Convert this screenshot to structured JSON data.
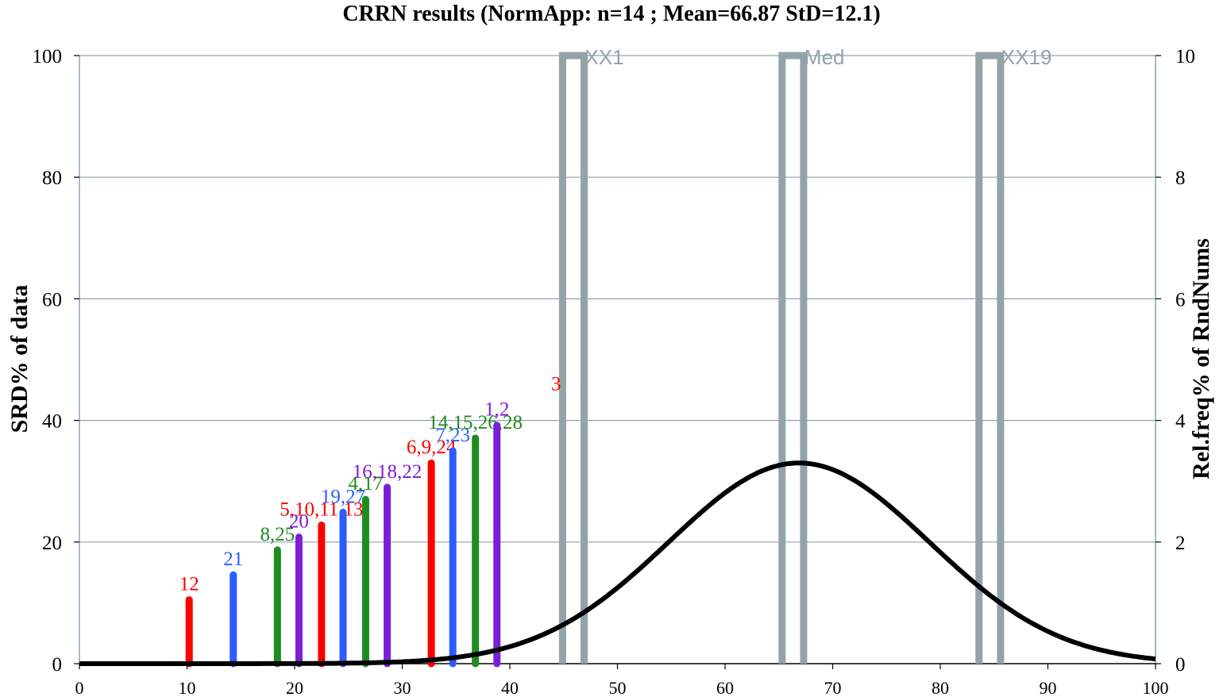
{
  "chart_data": {
    "type": "bar",
    "title": "CRRN results (NormApp: n=14 ; Mean=66.87 StD=12.1)",
    "xlabel": "",
    "ylabel": "SRD% of data",
    "y2label": "Rel.freq% of RndNums",
    "xlim": [
      0,
      100
    ],
    "ylim": [
      0,
      100
    ],
    "y2lim": [
      0,
      10
    ],
    "xticks": [
      0,
      10,
      20,
      30,
      40,
      50,
      60,
      70,
      80,
      90,
      100
    ],
    "yticks": [
      0,
      20,
      40,
      60,
      80,
      100
    ],
    "y2ticks": [
      0,
      2,
      4,
      6,
      8,
      10
    ],
    "grid": true,
    "colors": {
      "red": "#ff0000",
      "blue": "#2b5cff",
      "green": "#1e8c1e",
      "purple": "#7b1fd6",
      "gray": "#94a3a8",
      "curve": "#000000"
    },
    "bars": [
      {
        "x": 10.2,
        "y": 10.5,
        "label": "12",
        "color": "red"
      },
      {
        "x": 14.3,
        "y": 14.6,
        "label": "21",
        "color": "blue"
      },
      {
        "x": 18.4,
        "y": 18.7,
        "label": "8,25",
        "color": "green"
      },
      {
        "x": 20.4,
        "y": 20.8,
        "label": "20",
        "color": "purple"
      },
      {
        "x": 22.5,
        "y": 22.8,
        "label": "5,10,11,13",
        "color": "red"
      },
      {
        "x": 24.5,
        "y": 24.9,
        "label": "19,27",
        "color": "blue"
      },
      {
        "x": 26.6,
        "y": 27.0,
        "label": "4,17",
        "color": "green"
      },
      {
        "x": 28.6,
        "y": 29.0,
        "label": "16,18,22",
        "color": "purple"
      },
      {
        "x": 32.7,
        "y": 33.0,
        "label": "6,9,24",
        "color": "red"
      },
      {
        "x": 34.7,
        "y": 35.0,
        "label": "7,23",
        "color": "blue"
      },
      {
        "x": 36.8,
        "y": 37.1,
        "label": "14,15,26,28",
        "color": "green"
      },
      {
        "x": 38.8,
        "y": 39.2,
        "label": "1,2",
        "color": "purple"
      }
    ],
    "floating_labels": [
      {
        "x": 44.3,
        "y": 45,
        "label": "3",
        "color": "red"
      }
    ],
    "markers": [
      {
        "x1": 44.9,
        "x2": 46.9,
        "label": "XX1"
      },
      {
        "x1": 65.3,
        "x2": 67.3,
        "label": "Med"
      },
      {
        "x1": 83.6,
        "x2": 85.6,
        "label": "XX19"
      }
    ],
    "normal_curve": {
      "mean": 66.87,
      "sd": 12.1,
      "peak_y2": 3.3
    }
  }
}
